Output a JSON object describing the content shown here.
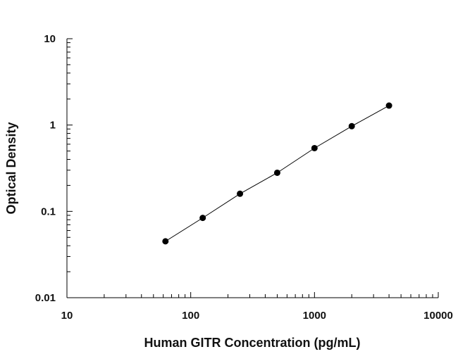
{
  "chart_data": {
    "type": "scatter",
    "title": "",
    "xlabel": "Human GITR Concentration (pg/mL)",
    "ylabel": "Optical Density",
    "xscale": "log",
    "yscale": "log",
    "xlim": [
      10,
      10000
    ],
    "ylim": [
      0.01,
      10
    ],
    "x_tick_labels": [
      "10",
      "100",
      "1000",
      "10000"
    ],
    "y_tick_labels": [
      "0.01",
      "0.1",
      "1",
      "10"
    ],
    "grid": false,
    "legend": "none",
    "series": [
      {
        "x": [
          62.5,
          125,
          250,
          500,
          1000,
          2000,
          4000
        ],
        "y": [
          0.045,
          0.084,
          0.16,
          0.28,
          0.54,
          0.97,
          1.68
        ],
        "color": "#000000",
        "marker": "circle",
        "line": true
      }
    ]
  }
}
